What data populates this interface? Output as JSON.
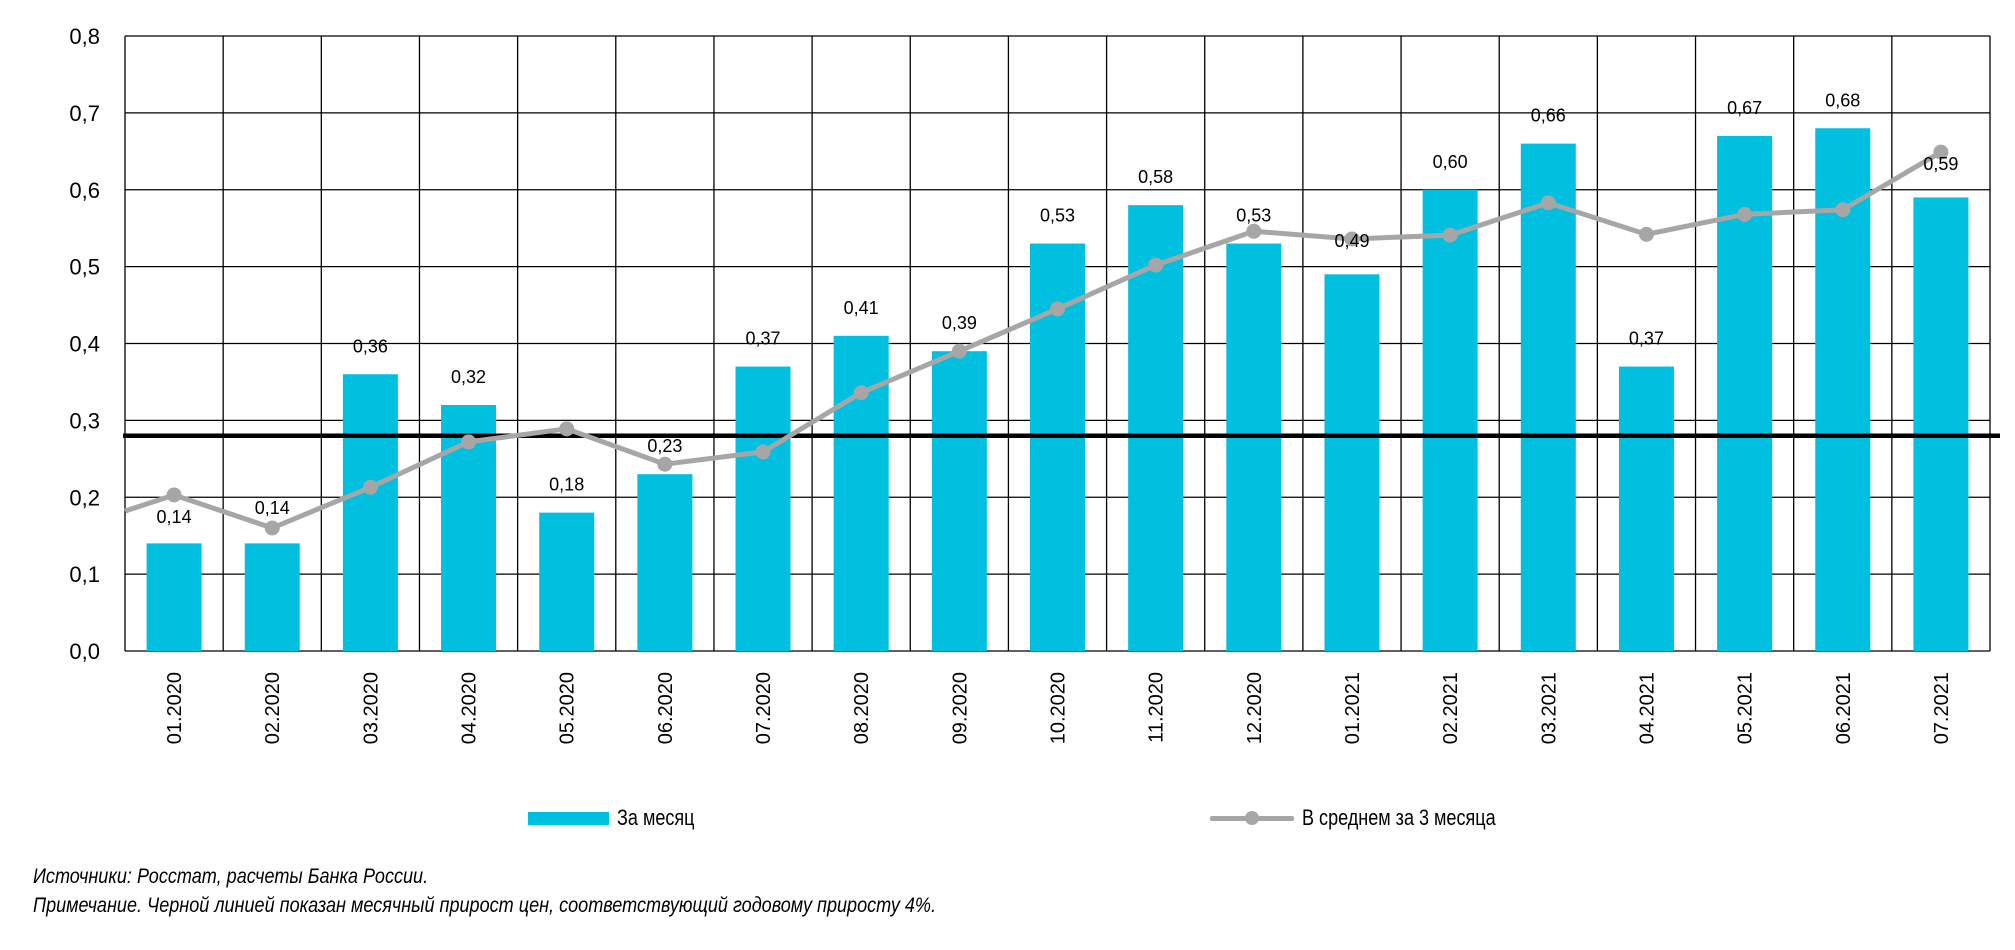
{
  "chart_data": {
    "type": "bar",
    "title": "",
    "xlabel": "",
    "ylabel": "",
    "ylim": [
      0,
      0.8
    ],
    "yticks": [
      "0,0",
      "0,1",
      "0,2",
      "0,3",
      "0,4",
      "0,5",
      "0,6",
      "0,7",
      "0,8"
    ],
    "ytick_values": [
      0,
      0.1,
      0.2,
      0.3,
      0.4,
      0.5,
      0.6,
      0.7,
      0.8
    ],
    "grid": true,
    "categories": [
      "01.2020",
      "02.2020",
      "03.2020",
      "04.2020",
      "05.2020",
      "06.2020",
      "07.2020",
      "08.2020",
      "09.2020",
      "10.2020",
      "11.2020",
      "12.2020",
      "01.2021",
      "02.2021",
      "03.2021",
      "04.2021",
      "05.2021",
      "06.2021",
      "07.2021"
    ],
    "series": [
      {
        "name": "За месяц",
        "type": "bar",
        "color": "#00BFDF",
        "values": [
          0.14,
          0.14,
          0.36,
          0.32,
          0.18,
          0.23,
          0.37,
          0.41,
          0.39,
          0.53,
          0.58,
          0.53,
          0.49,
          0.6,
          0.66,
          0.37,
          0.67,
          0.68,
          0.59
        ],
        "labels": [
          "0,14",
          "0,14",
          "0,36",
          "0,32",
          "0,18",
          "0,23",
          "0,37",
          "0,41",
          "0,39",
          "0,53",
          "0,58",
          "0,53",
          "0,49",
          "0,60",
          "0,66",
          "0,37",
          "0,67",
          "0,68",
          "0,59"
        ]
      },
      {
        "name": "В среднем за 3 месяца",
        "type": "line",
        "color": "#A6A6A6",
        "prior_value": 0.182,
        "values": [
          0.203,
          0.16,
          0.213,
          0.272,
          0.289,
          0.243,
          0.259,
          0.336,
          0.39,
          0.445,
          0.502,
          0.546,
          0.536,
          0.541,
          0.583,
          0.542,
          0.568,
          0.574,
          0.649
        ]
      }
    ],
    "reference_line": {
      "value": 0.28,
      "color": "#000000",
      "description": "monthly price growth equivalent to 4% annual"
    },
    "legend_position": "bottom"
  },
  "legend": {
    "bar_label": "За месяц",
    "line_label": "В среднем за 3 месяца"
  },
  "notes": {
    "source": "Источники: Росстат, расчеты Банка России.",
    "note": "Примечание. Черной линией показан месячный прирост цен, соответствующий годовому приросту 4%."
  }
}
